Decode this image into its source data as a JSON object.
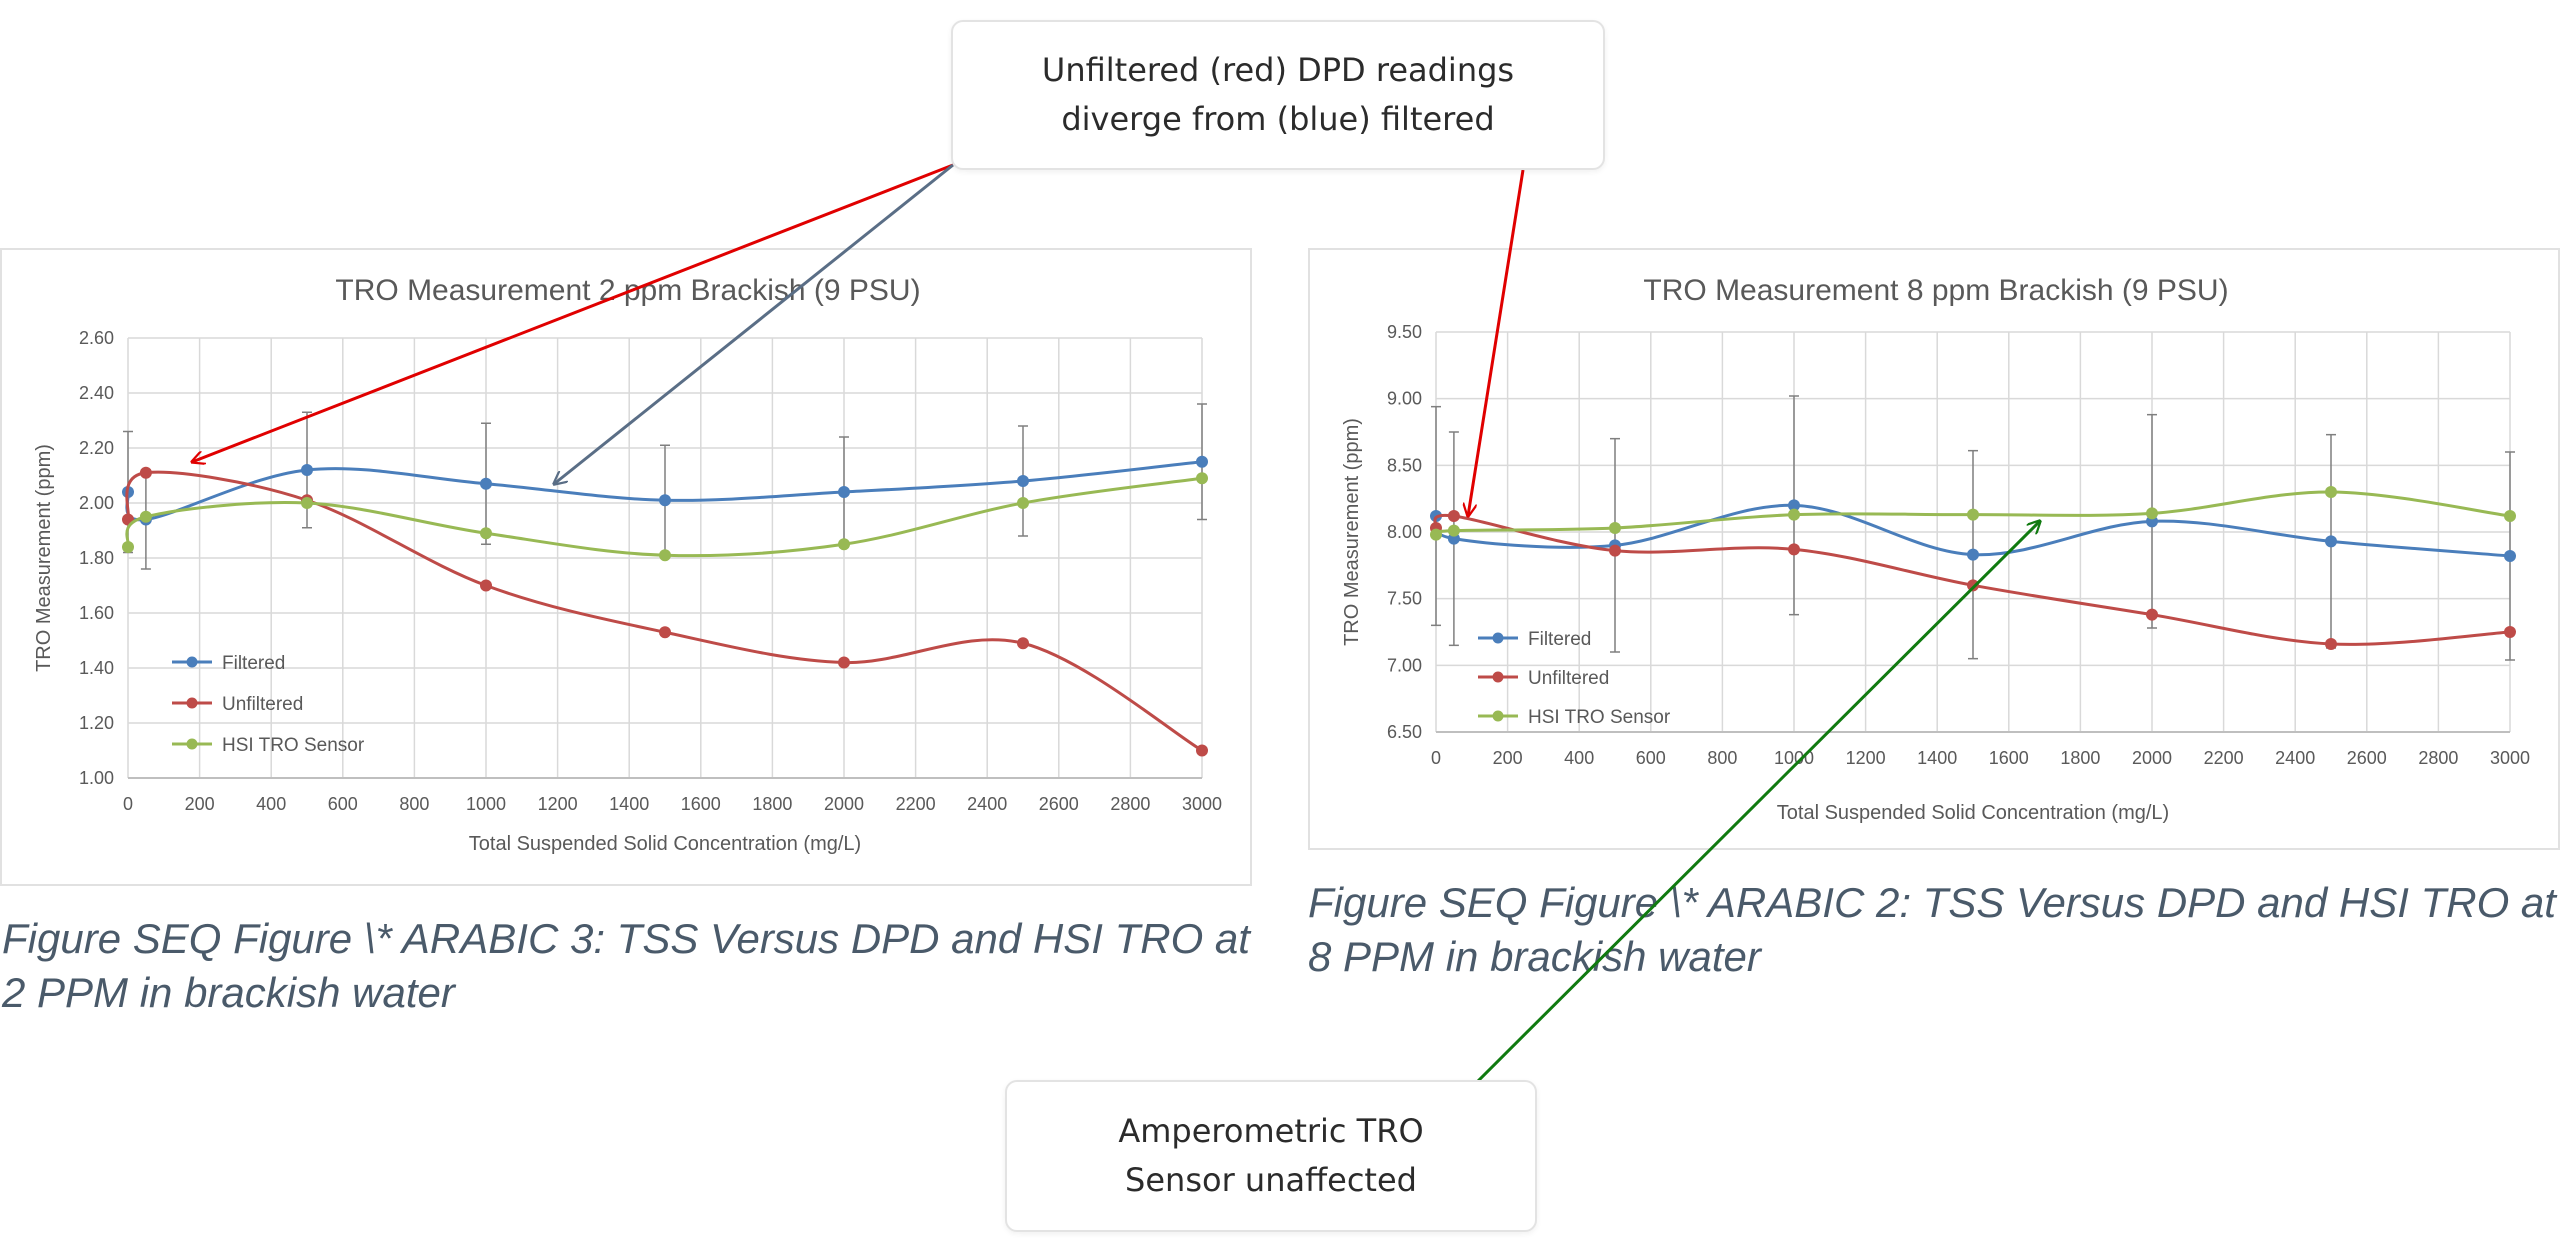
{
  "callouts": {
    "top": {
      "line1": "Unfiltered (red) DPD readings",
      "line2": "diverge from (blue) filtered"
    },
    "bottom": {
      "line1": "Amperometric TRO",
      "line2": "Sensor unaffected"
    }
  },
  "captions": {
    "left": "Figure  SEQ Figure \\* ARABIC 3: TSS Versus DPD and HSI TRO at 2 PPM in brackish water",
    "right": "Figure  SEQ Figure \\* ARABIC 2: TSS Versus DPD and HSI TRO at 8 PPM in brackish water"
  },
  "arrow_colors": {
    "red": "#e00000",
    "blue": "#5a6e86",
    "green": "#107a10"
  },
  "chart_data": [
    {
      "type": "line",
      "title": "TRO Measurement 2 ppm Brackish (9 PSU)",
      "xlabel": "Total Suspended Solid Concentration (mg/L)",
      "ylabel": "TRO Measurement (ppm)",
      "xlim": [
        0,
        3000
      ],
      "ylim": [
        1.0,
        2.6
      ],
      "xticks": [
        0,
        200,
        400,
        600,
        800,
        1000,
        1200,
        1400,
        1600,
        1800,
        2000,
        2200,
        2400,
        2600,
        2800,
        3000
      ],
      "yticks": [
        "1.00",
        "1.20",
        "1.40",
        "1.60",
        "1.80",
        "2.00",
        "2.20",
        "2.40",
        "2.60"
      ],
      "grid": true,
      "legend_position": "lower-left",
      "series": [
        {
          "name": "Filtered",
          "color": "#4a7ebb",
          "x": [
            0,
            50,
            500,
            1000,
            1500,
            2000,
            2500,
            3000
          ],
          "y": [
            2.04,
            1.94,
            2.12,
            2.07,
            2.01,
            2.04,
            2.08,
            2.15
          ],
          "error": [
            0.22,
            0.18,
            0.21,
            0.22,
            0.2,
            0.2,
            0.2,
            0.21
          ]
        },
        {
          "name": "Unfiltered",
          "color": "#be4b48",
          "x": [
            0,
            50,
            500,
            1000,
            1500,
            2000,
            2500,
            3000
          ],
          "y": [
            1.94,
            2.11,
            2.01,
            1.7,
            1.53,
            1.42,
            1.49,
            1.1
          ]
        },
        {
          "name": "HSI TRO Sensor",
          "color": "#98b954",
          "x": [
            0,
            50,
            500,
            1000,
            1500,
            2000,
            2500,
            3000
          ],
          "y": [
            1.84,
            1.95,
            2.0,
            1.89,
            1.81,
            1.85,
            2.0,
            2.09
          ]
        }
      ]
    },
    {
      "type": "line",
      "title": "TRO Measurement 8 ppm Brackish (9 PSU)",
      "xlabel": "Total Suspended Solid Concentration (mg/L)",
      "ylabel": "TRO Measurement (ppm)",
      "xlim": [
        0,
        3000
      ],
      "ylim": [
        6.5,
        9.5
      ],
      "xticks": [
        0,
        200,
        400,
        600,
        800,
        1000,
        1200,
        1400,
        1600,
        1800,
        2000,
        2200,
        2400,
        2600,
        2800,
        3000
      ],
      "yticks": [
        "6.50",
        "7.00",
        "7.50",
        "8.00",
        "8.50",
        "9.00",
        "9.50"
      ],
      "grid": true,
      "legend_position": "lower-left",
      "series": [
        {
          "name": "Filtered",
          "color": "#4a7ebb",
          "x": [
            0,
            50,
            500,
            1000,
            1500,
            2000,
            2500,
            3000
          ],
          "y": [
            8.12,
            7.95,
            7.9,
            8.2,
            7.83,
            8.08,
            7.93,
            7.82
          ],
          "error": [
            0.82,
            0.8,
            0.8,
            0.82,
            0.78,
            0.8,
            0.8,
            0.78
          ]
        },
        {
          "name": "Unfiltered",
          "color": "#be4b48",
          "x": [
            0,
            50,
            500,
            1000,
            1500,
            2000,
            2500,
            3000
          ],
          "y": [
            8.03,
            8.12,
            7.86,
            7.87,
            7.6,
            7.38,
            7.16,
            7.25
          ]
        },
        {
          "name": "HSI TRO Sensor",
          "color": "#98b954",
          "x": [
            0,
            50,
            500,
            1000,
            1500,
            2000,
            2500,
            3000
          ],
          "y": [
            7.98,
            8.01,
            8.03,
            8.13,
            8.13,
            8.14,
            8.3,
            8.12
          ]
        }
      ]
    }
  ]
}
